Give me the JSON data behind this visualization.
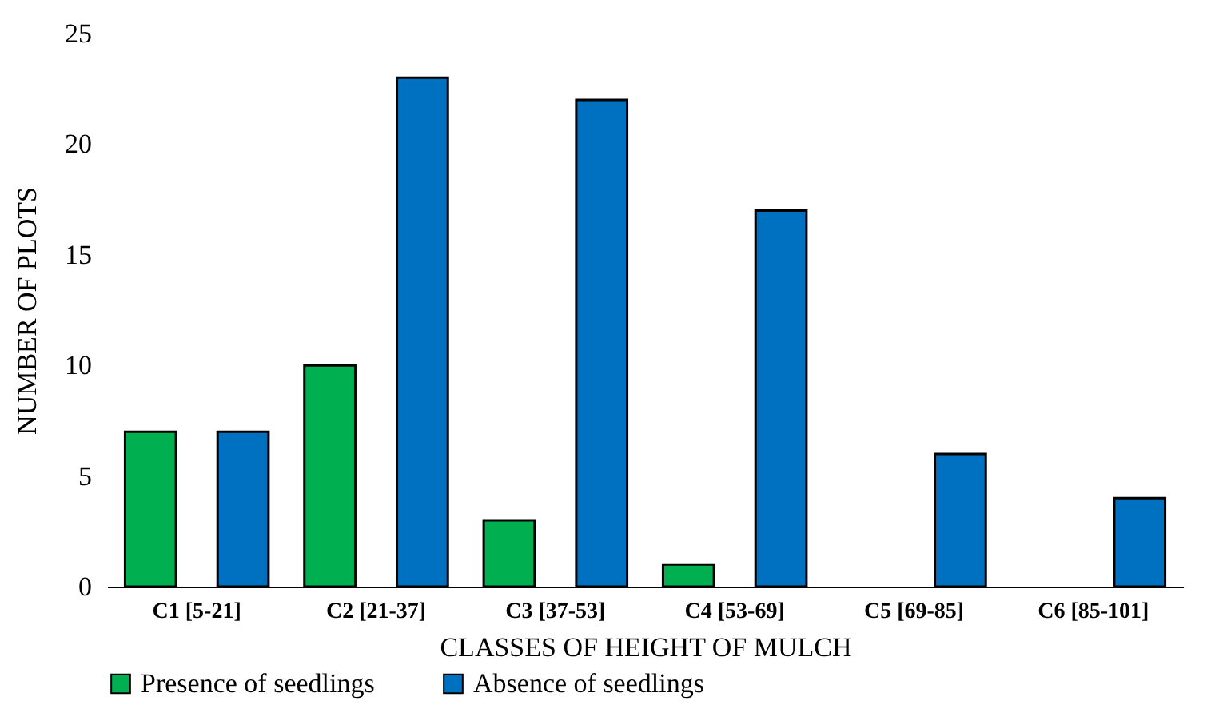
{
  "chart_data": {
    "type": "bar",
    "xlabel": "CLASSES OF HEIGHT OF MULCH",
    "ylabel": "NUMBER OF PLOTS",
    "categories": [
      "C1 [5-21]",
      "C2 [21-37]",
      "C3 [37-53]",
      "C4 [53-69]",
      "C5 [69-85]",
      "C6 [85-101]"
    ],
    "series": [
      {
        "name": "Presence of seedlings",
        "color": "#00b050",
        "values": [
          7,
          10,
          3,
          1,
          0,
          0
        ]
      },
      {
        "name": "Absence of seedlings",
        "color": "#0070c0",
        "values": [
          7,
          23,
          22,
          17,
          6,
          4
        ]
      }
    ],
    "ylim": [
      0,
      25
    ],
    "yticks": [
      0,
      5,
      10,
      15,
      20,
      25
    ],
    "grid": false,
    "legend": "bottom"
  }
}
